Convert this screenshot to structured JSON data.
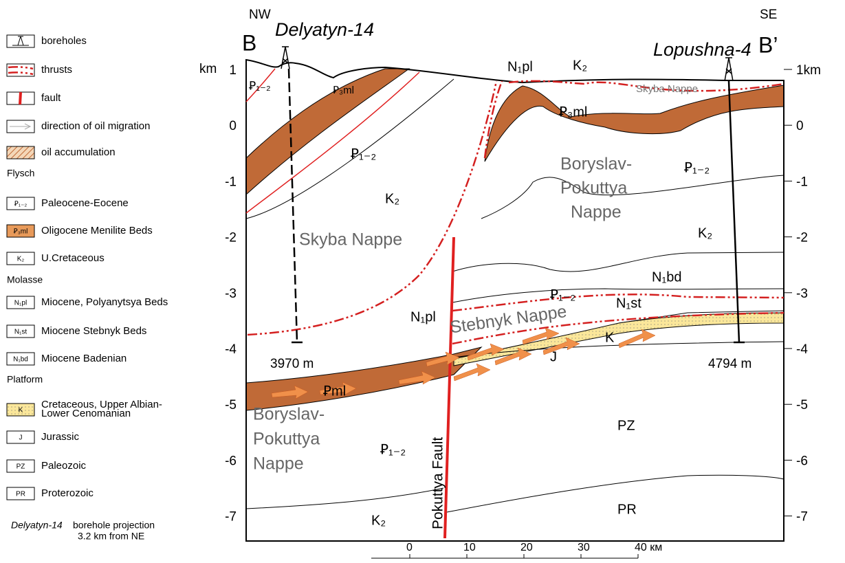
{
  "header": {
    "left_direction": "NW",
    "right_direction": "SE",
    "left_end": "B",
    "right_end": "B’"
  },
  "boreholes": [
    {
      "name": "Delyatyn-14",
      "depth": "3970 m"
    },
    {
      "name": "Lopushna-4",
      "depth": "4794 m"
    }
  ],
  "depth_axis": {
    "unit": "km",
    "left_ticks": [
      "1",
      "0",
      "-1",
      "-2",
      "-3",
      "-4",
      "-5",
      "-6",
      "-7"
    ],
    "right_ticks": [
      "1km",
      "0",
      "-1",
      "-2",
      "-3",
      "-4",
      "-5",
      "-6",
      "-7"
    ]
  },
  "scale_bar": {
    "ticks": [
      "0",
      "10",
      "20",
      "30",
      "40 км"
    ]
  },
  "section_labels": [
    "Skyba Nappe",
    "Boryslav-",
    "Pokuttya",
    "Nappe",
    "Stebnyk Nappe",
    "Boryslav-",
    "Pokuttya",
    "Nappe",
    "Pokuttya Fault",
    "Ꝑ₁₋₂",
    "Ꝑ₃ml",
    "Ꝑ₁₋₂",
    "K₂",
    "N₁pl",
    "K₂",
    "Skyba Nappe",
    "Ꝑ₃ml",
    "Ꝑ₁₋₂",
    "K₂",
    "N₁bd",
    "Ꝑ₁₋₂",
    "N₁st",
    "N₁pl",
    "K",
    "J",
    "Ꝑml",
    "Ꝑ₁₋₂",
    "PZ",
    "PR",
    "K₂"
  ],
  "legend": {
    "items": [
      {
        "label": "boreholes"
      },
      {
        "label": "thrusts"
      },
      {
        "label": "fault"
      },
      {
        "label": "direction of oil migration"
      },
      {
        "label": "oil accumulation"
      }
    ],
    "groups": [
      {
        "title": "Flysch",
        "items": [
          {
            "symbol": "Ꝑ₁₋₂",
            "label": "Paleocene-Eocene"
          },
          {
            "symbol": "Ꝑ₃ml",
            "label": "Oligocene Menilite Beds"
          },
          {
            "symbol": "K₂",
            "label": "U.Cretaceous"
          }
        ]
      },
      {
        "title": "Molasse",
        "items": [
          {
            "symbol": "N₁pl",
            "label": "Miocene, Polyanytsya Beds"
          },
          {
            "symbol": "N₁st",
            "label": "Miocene Stebnyk Beds"
          },
          {
            "symbol": "N₁bd",
            "label": "Miocene Badenian"
          }
        ]
      },
      {
        "title": "Platform",
        "items": [
          {
            "symbol": "K",
            "label": [
              "Cretaceous, Upper Albian-",
              "Lower Cenomanian"
            ]
          },
          {
            "symbol": "J",
            "label": "Jurassic"
          },
          {
            "symbol": "PZ",
            "label": "Paleozoic"
          },
          {
            "symbol": "PR",
            "label": "Proterozoic"
          }
        ]
      }
    ],
    "note": {
      "name": "Delyatyn-14",
      "text": [
        "borehole projection",
        "3.2 km from NE"
      ]
    }
  }
}
